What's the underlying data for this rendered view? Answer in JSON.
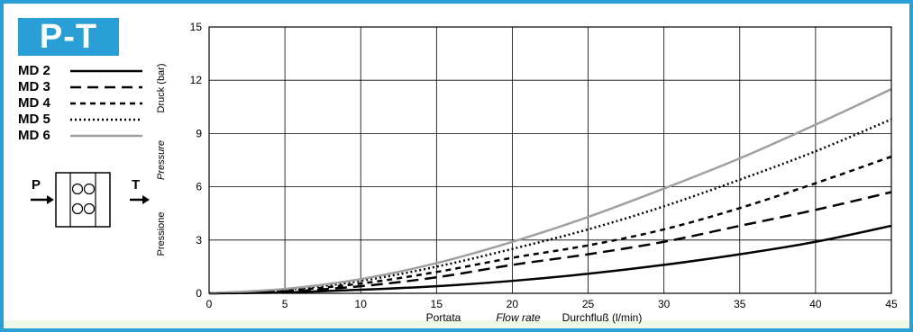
{
  "badge": "P-T",
  "valve": {
    "port_p": "P",
    "port_t": "T"
  },
  "colors": {
    "frame": "#2a9fd6",
    "grid": "#000000",
    "md6": "#a0a0a0"
  },
  "chart_data": {
    "type": "line",
    "xlabel_parts": [
      "Portata",
      "Flow rate",
      "Durchfluß (l/min)"
    ],
    "ylabel_parts": [
      "Pressione",
      "Pressure",
      "Druck (bar)"
    ],
    "xlim": [
      0,
      45
    ],
    "ylim": [
      0,
      15
    ],
    "x_ticks": [
      "0",
      "5",
      "10",
      "15",
      "20",
      "25",
      "30",
      "35",
      "40",
      "45"
    ],
    "y_ticks": [
      "0",
      "3",
      "6",
      "9",
      "12",
      "15"
    ],
    "grid": true,
    "legend_position": "left",
    "x": [
      0,
      5,
      10,
      15,
      20,
      25,
      30,
      35,
      40,
      45
    ],
    "series": [
      {
        "name": "MD 2",
        "style": "solid",
        "color": "#000000",
        "values": [
          0,
          0.05,
          0.2,
          0.4,
          0.7,
          1.1,
          1.6,
          2.2,
          2.9,
          3.8
        ]
      },
      {
        "name": "MD 3",
        "style": "dashed",
        "color": "#000000",
        "values": [
          0,
          0.1,
          0.4,
          0.9,
          1.6,
          2.2,
          2.9,
          3.8,
          4.7,
          5.7
        ]
      },
      {
        "name": "MD 4",
        "style": "short-dashed",
        "color": "#000000",
        "values": [
          0,
          0.15,
          0.55,
          1.2,
          2.0,
          2.7,
          3.6,
          4.8,
          6.2,
          7.7
        ]
      },
      {
        "name": "MD 5",
        "style": "dotted",
        "color": "#000000",
        "values": [
          0,
          0.2,
          0.7,
          1.5,
          2.5,
          3.6,
          4.9,
          6.4,
          8.0,
          9.8
        ]
      },
      {
        "name": "MD 6",
        "style": "solid",
        "color": "#a0a0a0",
        "values": [
          0,
          0.25,
          0.8,
          1.7,
          2.9,
          4.3,
          5.9,
          7.6,
          9.5,
          11.5
        ]
      }
    ]
  }
}
